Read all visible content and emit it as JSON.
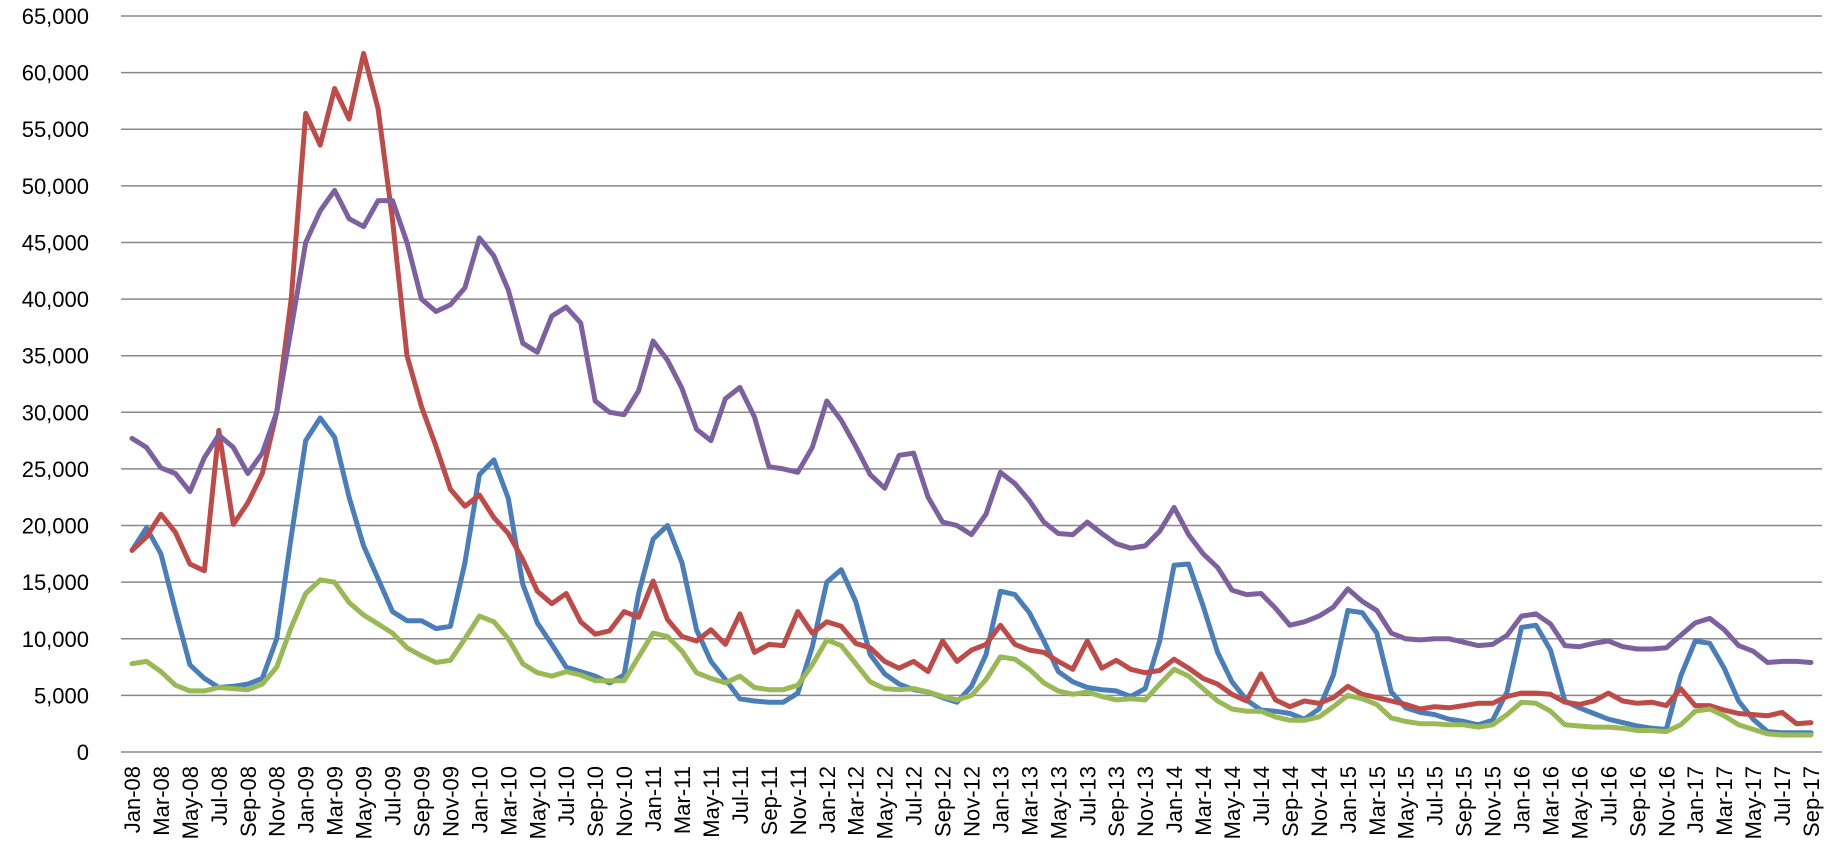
{
  "chart_data": {
    "type": "line",
    "categories": [
      "Jan-08",
      null,
      "Mar-08",
      null,
      "May-08",
      null,
      "Jul-08",
      null,
      "Sep-08",
      null,
      "Nov-08",
      null,
      "Jan-09",
      null,
      "Mar-09",
      null,
      "May-09",
      null,
      "Jul-09",
      null,
      "Sep-09",
      null,
      "Nov-09",
      null,
      "Jan-10",
      null,
      "Mar-10",
      null,
      "May-10",
      null,
      "Jul-10",
      null,
      "Sep-10",
      null,
      "Nov-10",
      null,
      "Jan-11",
      null,
      "Mar-11",
      null,
      "May-11",
      null,
      "Jul-11",
      null,
      "Sep-11",
      null,
      "Nov-11",
      null,
      "Jan-12",
      null,
      "Mar-12",
      null,
      "May-12",
      null,
      "Jul-12",
      null,
      "Sep-12",
      null,
      "Nov-12",
      null,
      "Jan-13",
      null,
      "Mar-13",
      null,
      "May-13",
      null,
      "Jul-13",
      null,
      "Sep-13",
      null,
      "Nov-13",
      null,
      "Jan-14",
      null,
      "Mar-14",
      null,
      "May-14",
      null,
      "Jul-14",
      null,
      "Sep-14",
      null,
      "Nov-14",
      null,
      "Jan-15",
      null,
      "Mar-15",
      null,
      "May-15",
      null,
      "Jul-15",
      null,
      "Sep-15",
      null,
      "Nov-15",
      null,
      "Jan-16",
      null,
      "Mar-16",
      null,
      "May-16",
      null,
      "Jul-16",
      null,
      "Sep-16",
      null,
      "Nov-16",
      null,
      "Jan-17",
      null,
      "Mar-17",
      null,
      "May-17",
      null,
      "Jul-17",
      null,
      "Sep-17"
    ],
    "series": [
      {
        "color": "#4a7ebb",
        "values": [
          17800,
          19800,
          17500,
          12500,
          7700,
          6500,
          5700,
          5800,
          6000,
          6500,
          10000,
          19000,
          27500,
          29500,
          27800,
          22500,
          18200,
          15300,
          12400,
          11600,
          11600,
          10900,
          11100,
          16700,
          24500,
          25800,
          22400,
          14800,
          11400,
          9500,
          7500,
          7100,
          6700,
          6100,
          6800,
          14000,
          18800,
          20000,
          16700,
          10800,
          8000,
          6400,
          4700,
          4500,
          4400,
          4400,
          5200,
          9300,
          15000,
          16100,
          13300,
          8600,
          6900,
          6000,
          5500,
          5300,
          4800,
          4400,
          5800,
          8600,
          14200,
          13900,
          12300,
          9800,
          7100,
          6200,
          5700,
          5500,
          5400,
          4900,
          5600,
          9800,
          16500,
          16600,
          12900,
          8800,
          6200,
          4600,
          3700,
          3600,
          3400,
          2900,
          3800,
          6800,
          12500,
          12300,
          10500,
          5300,
          3900,
          3500,
          3300,
          2900,
          2700,
          2400,
          2800,
          5300,
          11000,
          11200,
          9000,
          4500,
          3900,
          3400,
          2900,
          2600,
          2300,
          2100,
          2000,
          6700,
          9800,
          9600,
          7400,
          4500,
          2900,
          1800,
          1700,
          1700,
          1700
        ]
      },
      {
        "color": "#be4b48",
        "values": [
          17800,
          19000,
          21000,
          19400,
          16600,
          16000,
          28400,
          20100,
          22000,
          24600,
          30000,
          40000,
          56400,
          53600,
          58600,
          55900,
          61700,
          56800,
          47000,
          35000,
          30500,
          27000,
          23200,
          21700,
          22700,
          20700,
          19300,
          17000,
          14200,
          13100,
          14000,
          11500,
          10400,
          10700,
          12400,
          11900,
          15100,
          11700,
          10200,
          9800,
          10800,
          9500,
          12200,
          8800,
          9500,
          9400,
          12400,
          10500,
          11500,
          11100,
          9600,
          9200,
          8000,
          7400,
          8000,
          7100,
          9800,
          8000,
          9000,
          9500,
          11200,
          9500,
          9000,
          8800,
          8000,
          7300,
          9800,
          7400,
          8100,
          7300,
          7000,
          7200,
          8200,
          7400,
          6500,
          6000,
          5100,
          4500,
          6900,
          4600,
          4000,
          4500,
          4300,
          4800,
          5800,
          5100,
          4800,
          4500,
          4200,
          3800,
          4000,
          3900,
          4100,
          4300,
          4300,
          4900,
          5200,
          5200,
          5100,
          4400,
          4200,
          4500,
          5200,
          4500,
          4300,
          4400,
          4100,
          5600,
          4100,
          4100,
          3700,
          3400,
          3300,
          3200,
          3500,
          2500,
          2600
        ]
      },
      {
        "color": "#98b954",
        "values": [
          7800,
          8000,
          7100,
          5900,
          5400,
          5400,
          5700,
          5600,
          5500,
          6000,
          7500,
          11000,
          14000,
          15200,
          15000,
          13200,
          12100,
          11300,
          10500,
          9200,
          8500,
          7900,
          8100,
          10000,
          12000,
          11500,
          10000,
          7800,
          7000,
          6700,
          7100,
          6800,
          6300,
          6300,
          6300,
          8400,
          10500,
          10200,
          8900,
          7000,
          6500,
          6100,
          6700,
          5700,
          5500,
          5500,
          5900,
          7700,
          9900,
          9400,
          7800,
          6200,
          5600,
          5500,
          5600,
          5300,
          4900,
          4600,
          5000,
          6400,
          8400,
          8200,
          7300,
          6100,
          5400,
          5100,
          5300,
          4900,
          4600,
          4700,
          4600,
          6000,
          7300,
          6700,
          5600,
          4500,
          3800,
          3600,
          3600,
          3100,
          2800,
          2800,
          3100,
          4000,
          5000,
          4700,
          4200,
          3000,
          2700,
          2500,
          2500,
          2400,
          2400,
          2200,
          2400,
          3300,
          4400,
          4300,
          3600,
          2400,
          2300,
          2200,
          2200,
          2100,
          1900,
          1900,
          1800,
          2400,
          3600,
          3800,
          3200,
          2400,
          2000,
          1600,
          1500,
          1500,
          1500
        ]
      },
      {
        "color": "#7d60a0",
        "values": [
          27700,
          26900,
          25100,
          24600,
          23000,
          26000,
          28000,
          26900,
          24600,
          26400,
          30000,
          37400,
          45000,
          47800,
          49600,
          47100,
          46400,
          48700,
          48700,
          45000,
          40000,
          38900,
          39500,
          41000,
          45400,
          43800,
          40800,
          36100,
          35300,
          38500,
          39300,
          37900,
          31000,
          30000,
          29800,
          31900,
          36300,
          34600,
          32100,
          28500,
          27500,
          31200,
          32200,
          29600,
          25200,
          25000,
          24700,
          26900,
          31000,
          29300,
          27000,
          24500,
          23300,
          26200,
          26400,
          22500,
          20300,
          20000,
          19200,
          21000,
          24700,
          23700,
          22200,
          20300,
          19300,
          19200,
          20300,
          19300,
          18400,
          18000,
          18200,
          19500,
          21600,
          19200,
          17500,
          16300,
          14300,
          13900,
          14000,
          12700,
          11200,
          11500,
          12000,
          12800,
          14400,
          13300,
          12500,
          10500,
          10000,
          9900,
          10000,
          10000,
          9700,
          9400,
          9500,
          10300,
          12000,
          12200,
          11300,
          9400,
          9300,
          9600,
          9800,
          9300,
          9100,
          9100,
          9200,
          10300,
          11400,
          11800,
          10800,
          9400,
          8900,
          7900,
          8000,
          8000,
          7900
        ]
      }
    ],
    "ylim": [
      0,
      65000
    ],
    "yticks": [
      0,
      {
        "value": 5000,
        "label": "5,000"
      },
      {
        "value": 10000,
        "label": "10,000"
      },
      {
        "value": 15000,
        "label": "15,000"
      },
      {
        "value": 20000,
        "label": "20,000"
      },
      {
        "value": 25000,
        "label": "25,000"
      },
      {
        "value": 30000,
        "label": "30,000"
      },
      {
        "value": 35000,
        "label": "35,000"
      },
      {
        "value": 40000,
        "label": "40,000"
      },
      {
        "value": 45000,
        "label": "45,000"
      },
      {
        "value": 50000,
        "label": "50,000"
      },
      {
        "value": 55000,
        "label": "55,000"
      },
      {
        "value": 60000,
        "label": "60,000"
      },
      {
        "value": 65000,
        "label": "65,000"
      }
    ],
    "grid": true
  }
}
